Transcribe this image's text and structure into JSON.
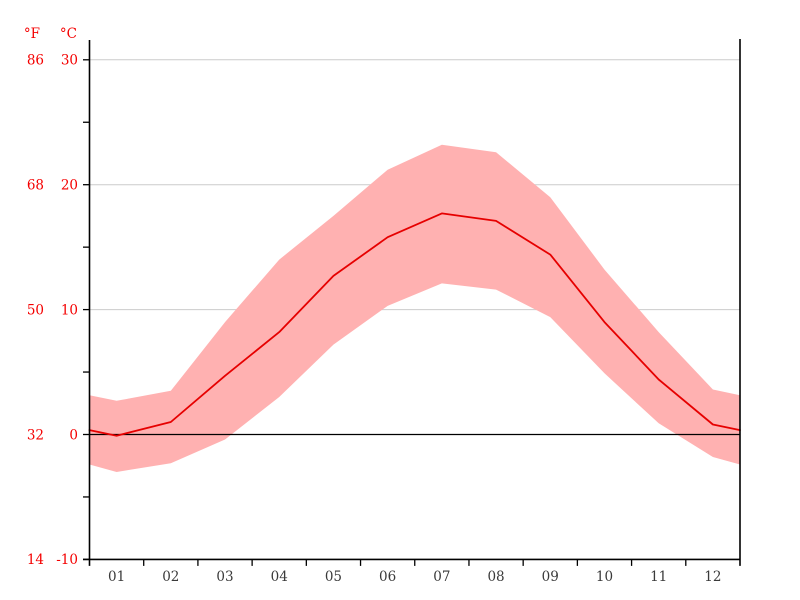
{
  "chart_data": {
    "type": "line",
    "title": "",
    "description": "Monthly climate graph: mean temperature line with min–max temperature band",
    "categories": [
      "01",
      "02",
      "03",
      "04",
      "05",
      "06",
      "07",
      "08",
      "09",
      "10",
      "11",
      "12"
    ],
    "series": [
      {
        "name": "mean_temperature_c",
        "values": [
          -0.1,
          1.0,
          4.7,
          8.2,
          12.7,
          15.8,
          17.7,
          17.1,
          14.4,
          9.0,
          4.4,
          0.8
        ]
      },
      {
        "name": "max_temperature_c",
        "values": [
          2.7,
          3.5,
          9.0,
          14.0,
          17.5,
          21.2,
          23.2,
          22.6,
          19.0,
          13.2,
          8.2,
          3.6
        ]
      },
      {
        "name": "min_temperature_c",
        "values": [
          -3.0,
          -2.3,
          -0.4,
          3.0,
          7.2,
          10.3,
          12.1,
          11.6,
          9.4,
          4.9,
          0.9,
          -1.8
        ]
      }
    ],
    "y_axis_celsius": {
      "label": "°C",
      "ticks": [
        30,
        20,
        10,
        0,
        -10
      ]
    },
    "y_axis_fahrenheit": {
      "label": "°F",
      "ticks": [
        86,
        68,
        50,
        32,
        14
      ]
    },
    "ylim_c": [
      -10,
      31.6
    ],
    "xlabel": "",
    "ylabel": "",
    "grid": true,
    "legend": "none",
    "minor_y_ticks_c": [
      30,
      25,
      20,
      15,
      10,
      5,
      0,
      -5,
      -10
    ],
    "colors": {
      "band": "#ffb1b1",
      "line": "#e60000",
      "axis_labels": "#f40000",
      "month_labels": "#3a3a3a",
      "grid": "#cccccc",
      "axis": "#000000",
      "zero_line": "#000000",
      "background": "#ffffff"
    }
  }
}
